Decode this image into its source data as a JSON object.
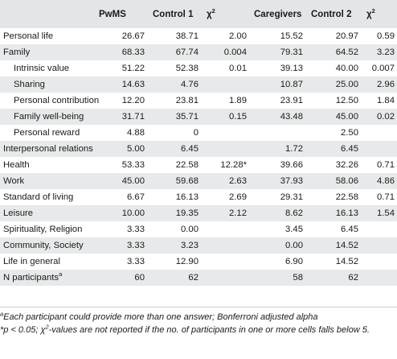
{
  "table": {
    "headers": {
      "label": "",
      "pwms": "PwMS",
      "control1": "Control 1",
      "chi1": "χ",
      "caregivers": "Caregivers",
      "control2": "Control 2",
      "chi2": "χ",
      "chi_sup": "2"
    },
    "rows": [
      {
        "label": "Personal life",
        "pwms": "26.67",
        "control1": "38.71",
        "chi1": "2.00",
        "caregivers": "15.52",
        "control2": "20.97",
        "chi2": "0.59"
      },
      {
        "label": "Family",
        "pwms": "68.33",
        "control1": "67.74",
        "chi1": "0.004",
        "caregivers": "79.31",
        "control2": "64.52",
        "chi2": "3.23"
      },
      {
        "label": "Intrinsic value",
        "pwms": "51.22",
        "control1": "52.38",
        "chi1": "0.01",
        "caregivers": "39.13",
        "control2": "40.00",
        "chi2": "0.007"
      },
      {
        "label": "Sharing",
        "pwms": "14.63",
        "control1": "4.76",
        "chi1": "",
        "caregivers": "10.87",
        "control2": "25.00",
        "chi2": "2.96"
      },
      {
        "label": "Personal contribution",
        "pwms": "12.20",
        "control1": "23.81",
        "chi1": "1.89",
        "caregivers": "23.91",
        "control2": "12.50",
        "chi2": "1.84"
      },
      {
        "label": "Family well-being",
        "pwms": "31.71",
        "control1": "35.71",
        "chi1": "0.15",
        "caregivers": "43.48",
        "control2": "45.00",
        "chi2": "0.02"
      },
      {
        "label": "Personal reward",
        "pwms": "4.88",
        "control1": "0",
        "chi1": "",
        "caregivers": "",
        "control2": "2.50",
        "chi2": ""
      },
      {
        "label": "Interpersonal relations",
        "pwms": "5.00",
        "control1": "6.45",
        "chi1": "",
        "caregivers": "1.72",
        "control2": "6.45",
        "chi2": ""
      },
      {
        "label": "Health",
        "pwms": "53.33",
        "control1": "22.58",
        "chi1": "12.28*",
        "caregivers": "39.66",
        "control2": "32.26",
        "chi2": "0.71"
      },
      {
        "label": "Work",
        "pwms": "45.00",
        "control1": "59.68",
        "chi1": "2.63",
        "caregivers": "37.93",
        "control2": "58.06",
        "chi2": "4.86"
      },
      {
        "label": "Standard of living",
        "pwms": "6.67",
        "control1": "16.13",
        "chi1": "2.69",
        "caregivers": "29.31",
        "control2": "22.58",
        "chi2": "0.71"
      },
      {
        "label": "Leisure",
        "pwms": "10.00",
        "control1": "19.35",
        "chi1": "2.12",
        "caregivers": "8.62",
        "control2": "16.13",
        "chi2": "1.54"
      },
      {
        "label": "Spirituality, Religion",
        "pwms": "3.33",
        "control1": "0.00",
        "chi1": "",
        "caregivers": "3.45",
        "control2": "6.45",
        "chi2": ""
      },
      {
        "label": "Community, Society",
        "pwms": "3.33",
        "control1": "3.23",
        "chi1": "",
        "caregivers": "0.00",
        "control2": "14.52",
        "chi2": ""
      },
      {
        "label": "Life in general",
        "pwms": "3.33",
        "control1": "12.90",
        "chi1": "",
        "caregivers": "6.90",
        "control2": "14.52",
        "chi2": ""
      },
      {
        "label": "N participants",
        "label_sup": "a",
        "pwms": "60",
        "control1": "62",
        "chi1": "",
        "caregivers": "58",
        "control2": "62",
        "chi2": ""
      }
    ]
  },
  "footnotes": {
    "a_marker": "a",
    "a_text": "Each participant could provide more than one answer; Bonferroni adjusted alpha",
    "star_text": "*p < 0.05; χ",
    "star_sup": "2",
    "star_rest": "-values are not reported if the no. of participants in one or more cells falls below 5."
  }
}
